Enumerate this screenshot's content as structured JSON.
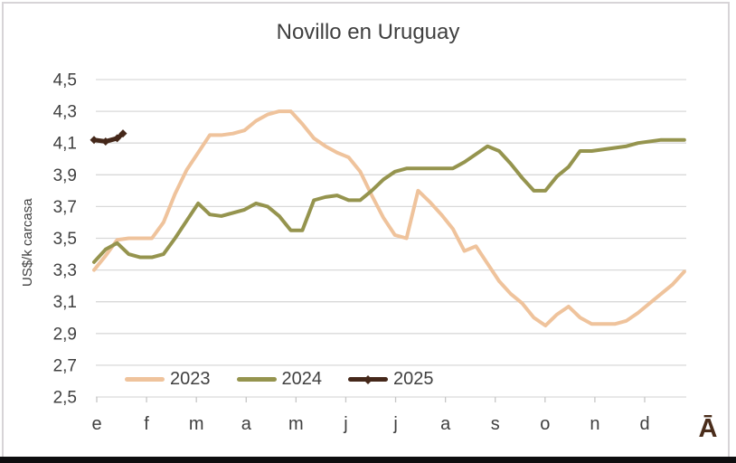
{
  "chart_data": {
    "type": "line",
    "title": "Novillo en Uruguay",
    "ylabel": "US$/k carcasa",
    "x_unit": "week-of-year",
    "xlabel_ticks": [
      "e",
      "f",
      "m",
      "a",
      "m",
      "j",
      "j",
      "a",
      "s",
      "o",
      "n",
      "d"
    ],
    "ylim": [
      2.5,
      4.5
    ],
    "ytick_step": 0.2,
    "ytick_labels": [
      "4,5",
      "4,3",
      "4,1",
      "3,9",
      "3,7",
      "3,5",
      "3,3",
      "3,1",
      "2,9",
      "2,7",
      "2,5"
    ],
    "grid": "horizontal",
    "legend_position": "bottom-inside",
    "annotation_br": "Ā",
    "colors": {
      "grid": "#d9d9d9",
      "tick": "#c6c6c6",
      "text": "#404040",
      "annotation": "#4a2d1b",
      "frame_border": "#d7d4d7",
      "bottom_bar": "#0e0e0f"
    },
    "series": [
      {
        "name": "2023",
        "color": "#efc39c",
        "values": [
          3.3,
          3.39,
          3.49,
          3.5,
          3.5,
          3.5,
          3.6,
          3.78,
          3.93,
          4.04,
          4.15,
          4.15,
          4.16,
          4.18,
          4.24,
          4.28,
          4.3,
          4.3,
          4.22,
          4.13,
          4.08,
          4.04,
          4.01,
          3.92,
          3.77,
          3.63,
          3.52,
          3.5,
          3.8,
          3.73,
          3.65,
          3.56,
          3.42,
          3.45,
          3.34,
          3.23,
          3.15,
          3.09,
          3.0,
          2.95,
          3.02,
          3.07,
          3.0,
          2.96,
          2.96,
          2.96,
          2.98,
          3.03,
          3.09,
          3.15,
          3.21,
          3.29
        ]
      },
      {
        "name": "2024",
        "color": "#95944e",
        "values": [
          3.35,
          3.43,
          3.47,
          3.4,
          3.38,
          3.38,
          3.4,
          3.5,
          3.61,
          3.72,
          3.65,
          3.64,
          3.66,
          3.68,
          3.72,
          3.7,
          3.64,
          3.55,
          3.55,
          3.74,
          3.76,
          3.77,
          3.74,
          3.74,
          3.8,
          3.87,
          3.92,
          3.94,
          3.94,
          3.94,
          3.94,
          3.94,
          3.98,
          4.03,
          4.08,
          4.05,
          3.97,
          3.88,
          3.8,
          3.8,
          3.89,
          3.95,
          4.05,
          4.05,
          4.06,
          4.07,
          4.08,
          4.1,
          4.11,
          4.12,
          4.12,
          4.12
        ]
      },
      {
        "name": "2025",
        "color": "#45281a",
        "marker": "diamond",
        "x_weeks": [
          1,
          2,
          3,
          3.5
        ],
        "values": [
          4.12,
          4.11,
          4.13,
          4.16
        ]
      }
    ]
  }
}
